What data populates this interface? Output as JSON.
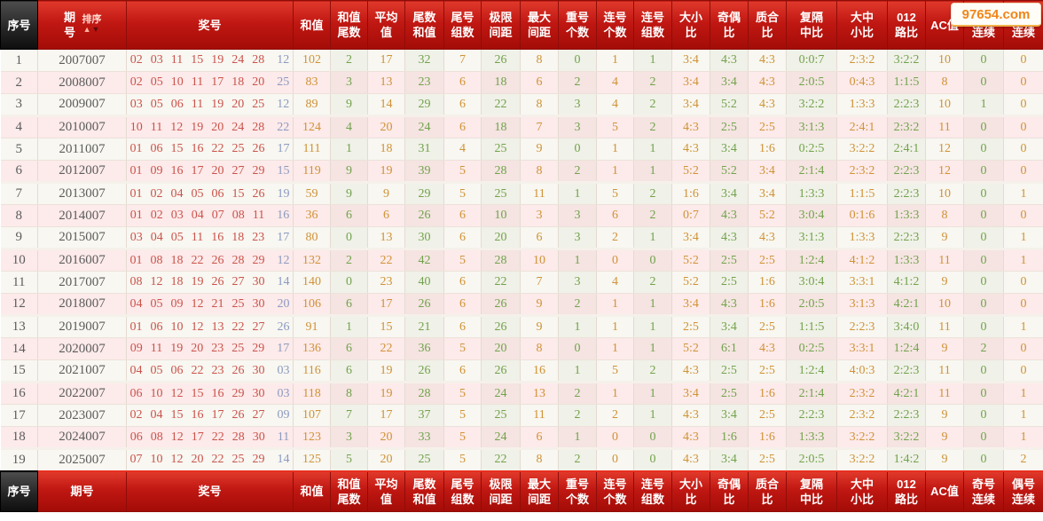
{
  "watermark": "97654.com",
  "header": {
    "sn": "序号",
    "period": "期号",
    "sort_label": "排序",
    "sort_up_icon": "▲",
    "sort_down_icon": "▼",
    "numbers": "奖号",
    "stat_cols": [
      [
        "和值"
      ],
      [
        "和值",
        "尾数"
      ],
      [
        "平均",
        "值"
      ],
      [
        "尾数",
        "和值"
      ],
      [
        "尾号",
        "组数"
      ],
      [
        "极限",
        "间距"
      ],
      [
        "最大",
        "间距"
      ],
      [
        "重号",
        "个数"
      ],
      [
        "连号",
        "个数"
      ],
      [
        "连号",
        "组数"
      ],
      [
        "大小",
        "比"
      ],
      [
        "奇偶",
        "比"
      ],
      [
        "质合",
        "比"
      ],
      [
        "复隔",
        "中比"
      ],
      [
        "大中",
        "小比"
      ],
      [
        "012",
        "路比"
      ],
      [
        "AC值"
      ],
      [
        "奇号",
        "连续"
      ],
      [
        "偶号",
        "连续"
      ]
    ]
  },
  "footer": {
    "sn": "序号",
    "period": "期号",
    "numbers": "奖号",
    "stat_cols": [
      [
        "和值"
      ],
      [
        "和值",
        "尾数"
      ],
      [
        "平均",
        "值"
      ],
      [
        "尾数",
        "和值"
      ],
      [
        "尾号",
        "组数"
      ],
      [
        "极限",
        "间距"
      ],
      [
        "最大",
        "间距"
      ],
      [
        "重号",
        "个数"
      ],
      [
        "连号",
        "个数"
      ],
      [
        "连号",
        "组数"
      ],
      [
        "大小",
        "比"
      ],
      [
        "奇偶",
        "比"
      ],
      [
        "质合",
        "比"
      ],
      [
        "复隔",
        "中比"
      ],
      [
        "大中",
        "小比"
      ],
      [
        "012",
        "路比"
      ],
      [
        "AC值"
      ],
      [
        "奇号",
        "连续"
      ],
      [
        "偶号",
        "连续"
      ]
    ]
  },
  "rows": [
    {
      "sn": "1",
      "period": "2007007",
      "reds": [
        "02",
        "03",
        "11",
        "15",
        "19",
        "24",
        "28"
      ],
      "special": "12",
      "stats": [
        "102",
        "2",
        "17",
        "32",
        "7",
        "26",
        "8",
        "0",
        "1",
        "1",
        "3:4",
        "4:3",
        "4:3",
        "0:0:7",
        "2:3:2",
        "3:2:2",
        "10",
        "0",
        "0"
      ]
    },
    {
      "sn": "2",
      "period": "2008007",
      "reds": [
        "02",
        "05",
        "10",
        "11",
        "17",
        "18",
        "20"
      ],
      "special": "25",
      "stats": [
        "83",
        "3",
        "13",
        "23",
        "6",
        "18",
        "6",
        "2",
        "4",
        "2",
        "3:4",
        "3:4",
        "4:3",
        "2:0:5",
        "0:4:3",
        "1:1:5",
        "8",
        "0",
        "0"
      ]
    },
    {
      "sn": "3",
      "period": "2009007",
      "reds": [
        "03",
        "05",
        "06",
        "11",
        "19",
        "20",
        "25"
      ],
      "special": "12",
      "stats": [
        "89",
        "9",
        "14",
        "29",
        "6",
        "22",
        "8",
        "3",
        "4",
        "2",
        "3:4",
        "5:2",
        "4:3",
        "3:2:2",
        "1:3:3",
        "2:2:3",
        "10",
        "1",
        "0"
      ]
    },
    {
      "sn": "4",
      "period": "2010007",
      "reds": [
        "10",
        "11",
        "12",
        "19",
        "20",
        "24",
        "28"
      ],
      "special": "22",
      "stats": [
        "124",
        "4",
        "20",
        "24",
        "6",
        "18",
        "7",
        "3",
        "5",
        "2",
        "4:3",
        "2:5",
        "2:5",
        "3:1:3",
        "2:4:1",
        "2:3:2",
        "11",
        "0",
        "0"
      ]
    },
    {
      "sn": "5",
      "period": "2011007",
      "reds": [
        "01",
        "06",
        "15",
        "16",
        "22",
        "25",
        "26"
      ],
      "special": "17",
      "stats": [
        "111",
        "1",
        "18",
        "31",
        "4",
        "25",
        "9",
        "0",
        "1",
        "1",
        "4:3",
        "3:4",
        "1:6",
        "0:2:5",
        "3:2:2",
        "2:4:1",
        "12",
        "0",
        "0"
      ]
    },
    {
      "sn": "6",
      "period": "2012007",
      "reds": [
        "01",
        "09",
        "16",
        "17",
        "20",
        "27",
        "29"
      ],
      "special": "15",
      "stats": [
        "119",
        "9",
        "19",
        "39",
        "5",
        "28",
        "8",
        "2",
        "1",
        "1",
        "5:2",
        "5:2",
        "3:4",
        "2:1:4",
        "2:3:2",
        "2:2:3",
        "12",
        "0",
        "0"
      ]
    },
    {
      "sn": "7",
      "period": "2013007",
      "reds": [
        "01",
        "02",
        "04",
        "05",
        "06",
        "15",
        "26"
      ],
      "special": "19",
      "stats": [
        "59",
        "9",
        "9",
        "29",
        "5",
        "25",
        "11",
        "1",
        "5",
        "2",
        "1:6",
        "3:4",
        "3:4",
        "1:3:3",
        "1:1:5",
        "2:2:3",
        "10",
        "0",
        "1"
      ]
    },
    {
      "sn": "8",
      "period": "2014007",
      "reds": [
        "01",
        "02",
        "03",
        "04",
        "07",
        "08",
        "11"
      ],
      "special": "16",
      "stats": [
        "36",
        "6",
        "6",
        "26",
        "6",
        "10",
        "3",
        "3",
        "6",
        "2",
        "0:7",
        "4:3",
        "5:2",
        "3:0:4",
        "0:1:6",
        "1:3:3",
        "8",
        "0",
        "0"
      ]
    },
    {
      "sn": "9",
      "period": "2015007",
      "reds": [
        "03",
        "04",
        "05",
        "11",
        "16",
        "18",
        "23"
      ],
      "special": "17",
      "stats": [
        "80",
        "0",
        "13",
        "30",
        "6",
        "20",
        "6",
        "3",
        "2",
        "1",
        "3:4",
        "4:3",
        "4:3",
        "3:1:3",
        "1:3:3",
        "2:2:3",
        "9",
        "0",
        "1"
      ]
    },
    {
      "sn": "10",
      "period": "2016007",
      "reds": [
        "01",
        "08",
        "18",
        "22",
        "26",
        "28",
        "29"
      ],
      "special": "12",
      "stats": [
        "132",
        "2",
        "22",
        "42",
        "5",
        "28",
        "10",
        "1",
        "0",
        "0",
        "5:2",
        "2:5",
        "2:5",
        "1:2:4",
        "4:1:2",
        "1:3:3",
        "11",
        "0",
        "1"
      ]
    },
    {
      "sn": "11",
      "period": "2017007",
      "reds": [
        "08",
        "12",
        "18",
        "19",
        "26",
        "27",
        "30"
      ],
      "special": "14",
      "stats": [
        "140",
        "0",
        "23",
        "40",
        "6",
        "22",
        "7",
        "3",
        "4",
        "2",
        "5:2",
        "2:5",
        "1:6",
        "3:0:4",
        "3:3:1",
        "4:1:2",
        "9",
        "0",
        "0"
      ]
    },
    {
      "sn": "12",
      "period": "2018007",
      "reds": [
        "04",
        "05",
        "09",
        "12",
        "21",
        "25",
        "30"
      ],
      "special": "20",
      "stats": [
        "106",
        "6",
        "17",
        "26",
        "6",
        "26",
        "9",
        "2",
        "1",
        "1",
        "3:4",
        "4:3",
        "1:6",
        "2:0:5",
        "3:1:3",
        "4:2:1",
        "10",
        "0",
        "0"
      ]
    },
    {
      "sn": "13",
      "period": "2019007",
      "reds": [
        "01",
        "06",
        "10",
        "12",
        "13",
        "22",
        "27"
      ],
      "special": "26",
      "stats": [
        "91",
        "1",
        "15",
        "21",
        "6",
        "26",
        "9",
        "1",
        "1",
        "1",
        "2:5",
        "3:4",
        "2:5",
        "1:1:5",
        "2:2:3",
        "3:4:0",
        "11",
        "0",
        "1"
      ]
    },
    {
      "sn": "14",
      "period": "2020007",
      "reds": [
        "09",
        "11",
        "19",
        "20",
        "23",
        "25",
        "29"
      ],
      "special": "17",
      "stats": [
        "136",
        "6",
        "22",
        "36",
        "5",
        "20",
        "8",
        "0",
        "1",
        "1",
        "5:2",
        "6:1",
        "4:3",
        "0:2:5",
        "3:3:1",
        "1:2:4",
        "9",
        "2",
        "0"
      ]
    },
    {
      "sn": "15",
      "period": "2021007",
      "reds": [
        "04",
        "05",
        "06",
        "22",
        "23",
        "26",
        "30"
      ],
      "special": "03",
      "stats": [
        "116",
        "6",
        "19",
        "26",
        "6",
        "26",
        "16",
        "1",
        "5",
        "2",
        "4:3",
        "2:5",
        "2:5",
        "1:2:4",
        "4:0:3",
        "2:2:3",
        "11",
        "0",
        "0"
      ]
    },
    {
      "sn": "16",
      "period": "2022007",
      "reds": [
        "06",
        "10",
        "12",
        "15",
        "16",
        "29",
        "30"
      ],
      "special": "03",
      "stats": [
        "118",
        "8",
        "19",
        "28",
        "5",
        "24",
        "13",
        "2",
        "1",
        "1",
        "3:4",
        "2:5",
        "1:6",
        "2:1:4",
        "2:3:2",
        "4:2:1",
        "11",
        "0",
        "1"
      ]
    },
    {
      "sn": "17",
      "period": "2023007",
      "reds": [
        "02",
        "04",
        "15",
        "16",
        "17",
        "26",
        "27"
      ],
      "special": "09",
      "stats": [
        "107",
        "7",
        "17",
        "37",
        "5",
        "25",
        "11",
        "2",
        "2",
        "1",
        "4:3",
        "3:4",
        "2:5",
        "2:2:3",
        "2:3:2",
        "2:2:3",
        "9",
        "0",
        "1"
      ]
    },
    {
      "sn": "18",
      "period": "2024007",
      "reds": [
        "06",
        "08",
        "12",
        "17",
        "22",
        "28",
        "30"
      ],
      "special": "11",
      "stats": [
        "123",
        "3",
        "20",
        "33",
        "5",
        "24",
        "6",
        "1",
        "0",
        "0",
        "4:3",
        "1:6",
        "1:6",
        "1:3:3",
        "3:2:2",
        "3:2:2",
        "9",
        "0",
        "1"
      ]
    },
    {
      "sn": "19",
      "period": "2025007",
      "reds": [
        "07",
        "10",
        "12",
        "20",
        "22",
        "25",
        "29"
      ],
      "special": "14",
      "stats": [
        "125",
        "5",
        "20",
        "25",
        "5",
        "22",
        "8",
        "2",
        "0",
        "0",
        "4:3",
        "3:4",
        "2:5",
        "2:0:5",
        "3:2:2",
        "1:4:2",
        "9",
        "0",
        "2"
      ]
    }
  ],
  "colors": {
    "header_red": "#c01712",
    "stat_orange": "#cf9236",
    "stat_green": "#71a24b",
    "ball_red": "#c9534b",
    "ball_blue": "#8b9ac0",
    "watermark_orange": "#f08519"
  }
}
